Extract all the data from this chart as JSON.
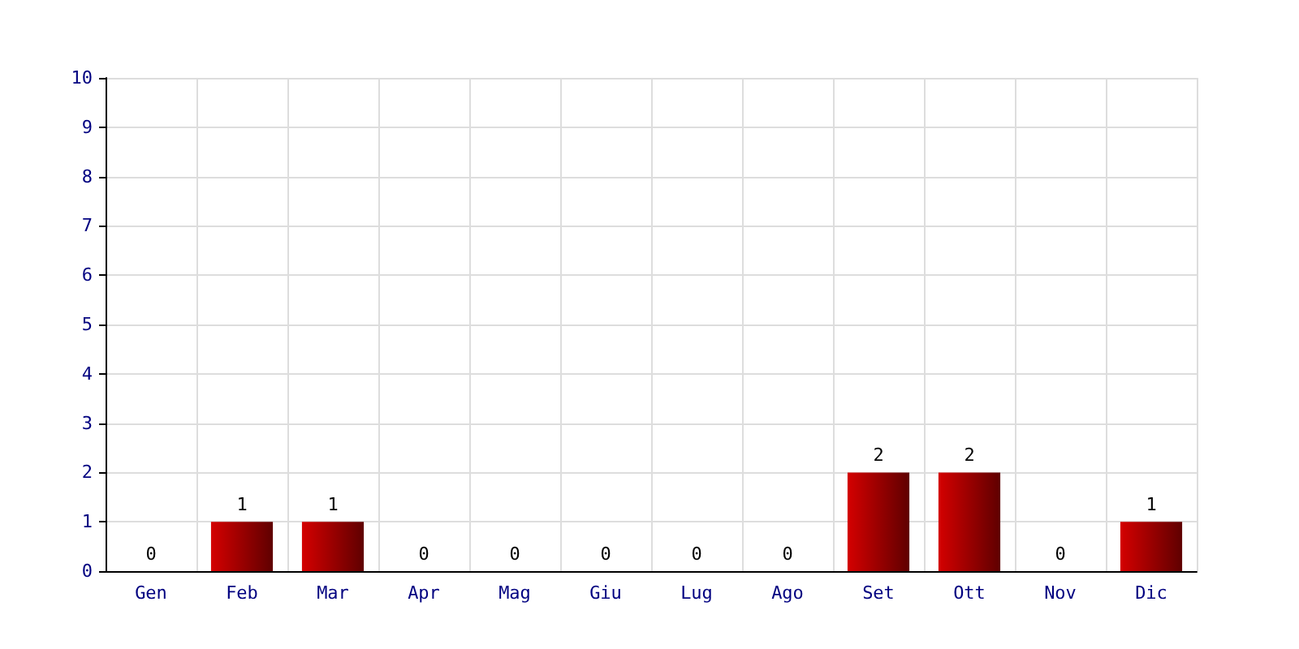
{
  "chart_data": {
    "type": "bar",
    "categories": [
      "Gen",
      "Feb",
      "Mar",
      "Apr",
      "Mag",
      "Giu",
      "Lug",
      "Ago",
      "Set",
      "Ott",
      "Nov",
      "Dic"
    ],
    "values": [
      0,
      1,
      1,
      0,
      0,
      0,
      0,
      0,
      2,
      2,
      0,
      1
    ],
    "color": "#d40000",
    "ylim": [
      0,
      10
    ],
    "yticks": [
      0,
      1,
      2,
      3,
      4,
      5,
      6,
      7,
      8,
      9,
      10
    ],
    "grid": true,
    "data_labels": true
  }
}
